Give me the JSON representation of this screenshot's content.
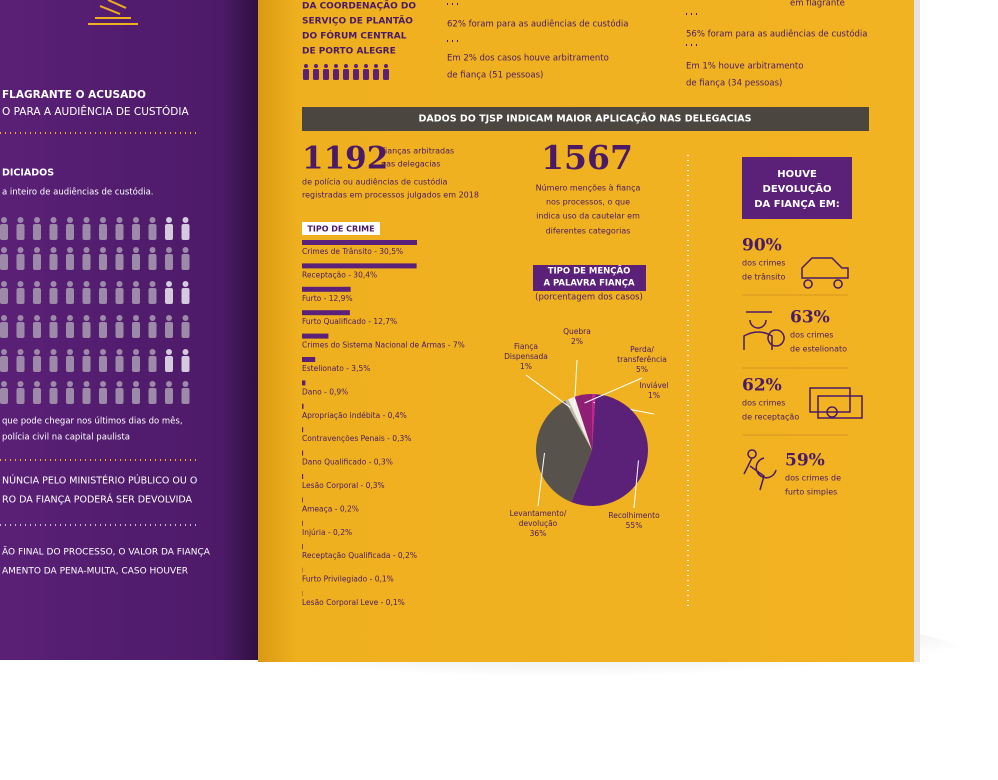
{
  "left_page": {
    "block_1": [
      "FLAGRANTE O ACUSADO",
      "O PARA A AUDIÊNCIA DE CUSTÓDIA"
    ],
    "block_2": [
      "DICIADOS",
      "a inteiro de audiências de custódia."
    ],
    "block_3": [
      "que pode chegar nos últimos dias do mês,",
      "polícia civil na capital paulista"
    ],
    "block_4": [
      "NÚNCIA PELO MINISTÉRIO PÚBLICO OU O",
      "RO DA FIANÇA PODERÁ SER DEVOLVIDA"
    ],
    "block_5": [
      "ÃO FINAL DO PROCESSO, O VALOR DA FIANÇA",
      "AMENTO DA PENA-MULTA, CASO HOUVER"
    ]
  },
  "top": {
    "source_lines": [
      "DA COORDENAÇÃO DO",
      "SERVIÇO DE PLANTÃO",
      "DO FÓRUM CENTRAL",
      "DE PORTO ALEGRE"
    ],
    "col_1": [
      "62% foram para as audiências de custódia",
      "Em 2% dos casos houve arbitramento",
      "de fiança (51 pessoas)"
    ],
    "col_2": [
      "em flagrante",
      "56% foram para as audiências de custódia",
      "Em 1% houve arbitramento",
      "de fiança (34 pessoas)"
    ]
  },
  "banner": "DADOS DO TJSP INDICAM MAIOR APLICAÇÃO NAS DELEGACIAS",
  "stat_1192": {
    "number": "1192",
    "lines": [
      "Fianças arbitradas",
      "nas delegacias",
      "de polícia ou audiências de custódia",
      "registradas em processos julgados em 2018"
    ]
  },
  "crime_types": {
    "title": "TIPO DE CRIME",
    "items": [
      {
        "label": "Crimes de Trânsito - 30,5%",
        "value": 30.5
      },
      {
        "label": "Receptação - 30,4%",
        "value": 30.4
      },
      {
        "label": "Furto - 12,9%",
        "value": 12.9
      },
      {
        "label": "Furto Qualificado - 12,7%",
        "value": 12.7
      },
      {
        "label": "Crimes do Sistema Nacional de Armas - 7%",
        "value": 7
      },
      {
        "label": "Estelionato - 3,5%",
        "value": 3.5
      },
      {
        "label": "Dano - 0,9%",
        "value": 0.9
      },
      {
        "label": "Apropriação indébita - 0,4%",
        "value": 0.4
      },
      {
        "label": "Contravenções Penais - 0,3%",
        "value": 0.3
      },
      {
        "label": "Dano Qualificado - 0,3%",
        "value": 0.3
      },
      {
        "label": "Lesão Corporal - 0,3%",
        "value": 0.3
      },
      {
        "label": "Ameaça - 0,2%",
        "value": 0.2
      },
      {
        "label": "Injúria - 0,2%",
        "value": 0.2
      },
      {
        "label": "Receptação Qualificada - 0,2%",
        "value": 0.2
      },
      {
        "label": "Furto Privilegiado - 0,1%",
        "value": 0.1
      },
      {
        "label": "Lesão Corporal Leve - 0,1%",
        "value": 0.1
      }
    ]
  },
  "stat_1567": {
    "number": "1567",
    "lines": [
      "Número menções à fiança",
      "nos processos, o que",
      "indica uso da cautelar em",
      "diferentes categorias"
    ]
  },
  "mention_chart": {
    "type": "pie",
    "title_lines": [
      "TIPO DE MENÇÃO",
      "A PALAVRA FIANÇA"
    ],
    "subtitle": "(porcentagem dos casos)",
    "slices": [
      {
        "name_lines": [
          "Inviável"
        ],
        "value": 1,
        "value_label": "1%",
        "color": "#c2258c"
      },
      {
        "name_lines": [
          "Recolhimento"
        ],
        "value": 55,
        "value_label": "55%",
        "color": "#5b2078"
      },
      {
        "name_lines": [
          "Levantamento/",
          "devolução"
        ],
        "value": 36,
        "value_label": "36%",
        "color": "#57524c"
      },
      {
        "name_lines": [
          "Fiança",
          "Dispensada"
        ],
        "value": 1,
        "value_label": "1%",
        "color": "#bdb8b2"
      },
      {
        "name_lines": [
          "Quebra"
        ],
        "value": 2,
        "value_label": "2%",
        "color": "#f3f0ea"
      },
      {
        "name_lines": [
          "Perda/",
          "transferência"
        ],
        "value": 5,
        "value_label": "5%",
        "color": "#8e1f74"
      }
    ]
  },
  "refund": {
    "title_lines": [
      "HOUVE",
      "DEVOLUÇÃO",
      "DA FIANÇA EM:"
    ],
    "items": [
      {
        "percent": "90%",
        "lines": [
          "dos crimes",
          "de trânsito"
        ]
      },
      {
        "percent": "63%",
        "lines": [
          "dos crimes",
          "de estelionato"
        ]
      },
      {
        "percent": "62%",
        "lines": [
          "dos crimes",
          "de receptação"
        ]
      },
      {
        "percent": "59%",
        "lines": [
          "dos crimes de",
          "furto simples"
        ]
      }
    ]
  }
}
